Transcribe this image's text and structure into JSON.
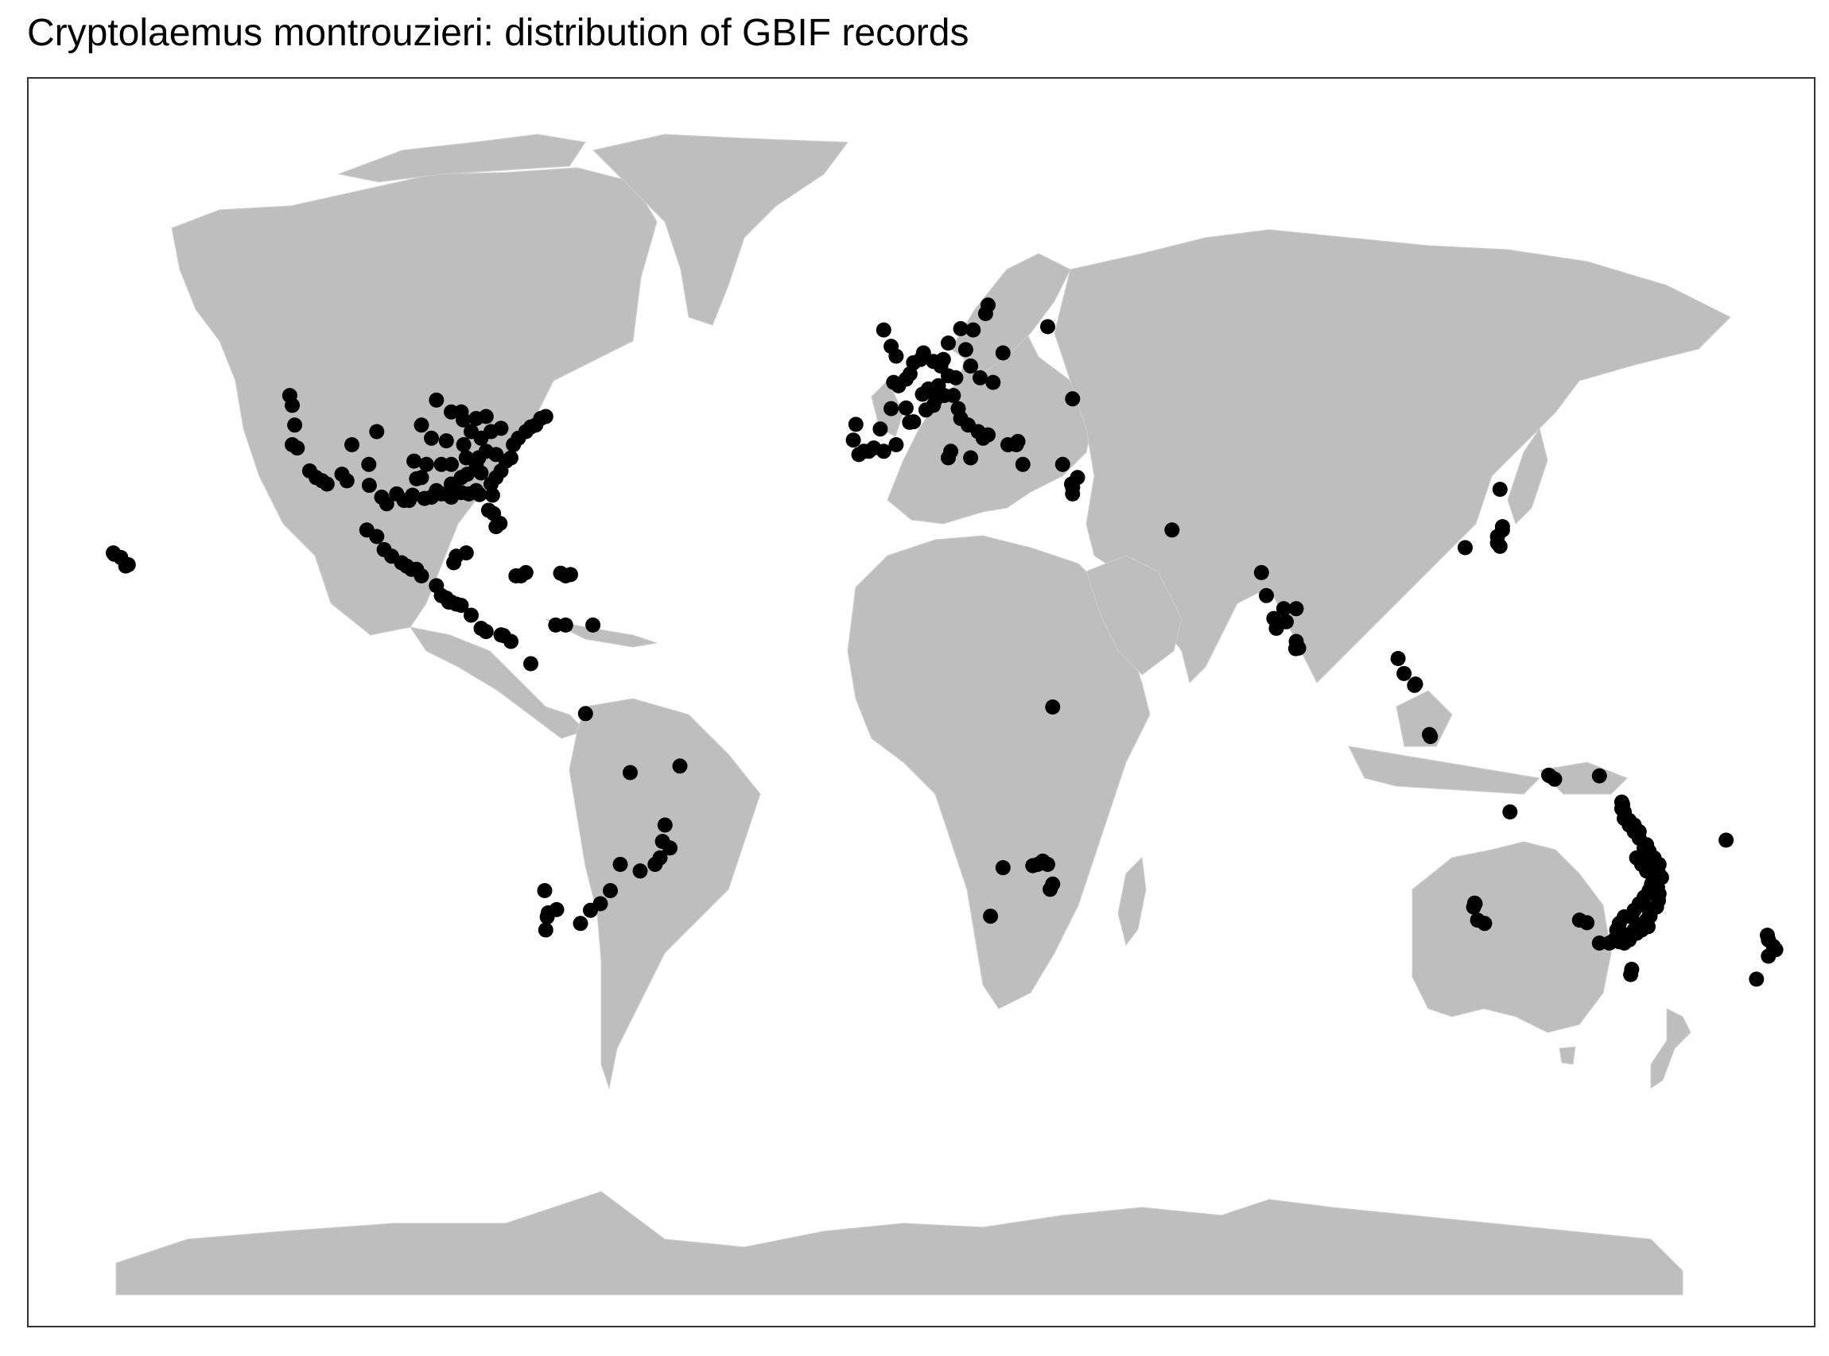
{
  "title": "Cryptolaemus montrouzieri: distribution of GBIF records",
  "colors": {
    "land": "#bebebe",
    "points": "#000000",
    "background": "#ffffff",
    "border": "#333333"
  },
  "map": {
    "projection": "equirectangular-style world map",
    "layers": [
      "land-polygons",
      "gbif-record-points"
    ],
    "point_groups": [
      {
        "region": "North America",
        "points": [
          [
            -122.5,
            45.5
          ],
          [
            -122,
            44
          ],
          [
            -121.5,
            41
          ],
          [
            -122,
            38
          ],
          [
            -121,
            37.5
          ],
          [
            -118.5,
            34
          ],
          [
            -117.2,
            33
          ],
          [
            -116,
            32.5
          ],
          [
            -115,
            32
          ],
          [
            -112,
            33.5
          ],
          [
            -111,
            32.5
          ],
          [
            -106.5,
            31.8
          ],
          [
            -104,
            30
          ],
          [
            -103,
            29
          ],
          [
            -101,
            30.5
          ],
          [
            -99.5,
            29.5
          ],
          [
            -98.5,
            29.5
          ],
          [
            -97.8,
            30.3
          ],
          [
            -97,
            32.8
          ],
          [
            -96,
            33
          ],
          [
            -95.4,
            29.8
          ],
          [
            -94,
            30
          ],
          [
            -93,
            31
          ],
          [
            -92,
            30.5
          ],
          [
            -91,
            30.5
          ],
          [
            -90,
            30
          ],
          [
            -89,
            31
          ],
          [
            -88,
            30.7
          ],
          [
            -86.5,
            30.5
          ],
          [
            -85,
            31
          ],
          [
            -84.3,
            30.4
          ],
          [
            -82.5,
            28
          ],
          [
            -81.5,
            27.5
          ],
          [
            -81,
            25.5
          ],
          [
            -80.2,
            26
          ],
          [
            -81.7,
            30.3
          ],
          [
            -82,
            32
          ],
          [
            -81,
            33
          ],
          [
            -80,
            34
          ],
          [
            -79,
            35.5
          ],
          [
            -78,
            36
          ],
          [
            -77.5,
            38
          ],
          [
            -76.5,
            39
          ],
          [
            -75,
            40
          ],
          [
            -74,
            40.7
          ],
          [
            -73,
            41
          ],
          [
            -72,
            42
          ],
          [
            -71,
            42.3
          ],
          [
            -83,
            42.3
          ],
          [
            -85,
            42
          ],
          [
            -87.6,
            41.8
          ],
          [
            -88,
            43
          ],
          [
            -90,
            43
          ],
          [
            -93,
            44.8
          ],
          [
            -96,
            41
          ],
          [
            -97.5,
            35.5
          ],
          [
            -95,
            35
          ],
          [
            -92,
            35
          ],
          [
            -90,
            35
          ],
          [
            -87,
            36
          ],
          [
            -85,
            35
          ],
          [
            -84,
            33.7
          ],
          [
            -86.8,
            33.5
          ],
          [
            -88,
            33
          ],
          [
            -90,
            32
          ],
          [
            -84,
            39
          ],
          [
            -86,
            40
          ],
          [
            -82,
            40
          ],
          [
            -80,
            40.5
          ],
          [
            -105,
            40
          ],
          [
            -106.6,
            35
          ],
          [
            -110,
            38
          ],
          [
            -91,
            38.6
          ],
          [
            -94,
            39
          ],
          [
            -87.5,
            38
          ],
          [
            -83,
            37
          ],
          [
            -81,
            36.5
          ],
          [
            -84.5,
            36
          ]
        ]
      },
      {
        "region": "Mexico, Central America and Caribbean",
        "points": [
          [
            -107,
            25
          ],
          [
            -105,
            24
          ],
          [
            -103.5,
            22
          ],
          [
            -102,
            21
          ],
          [
            -100,
            20
          ],
          [
            -99,
            19.5
          ],
          [
            -98,
            19
          ],
          [
            -97,
            19
          ],
          [
            -96,
            18
          ],
          [
            -93,
            16.5
          ],
          [
            -92,
            15
          ],
          [
            -91,
            14.6
          ],
          [
            -90.5,
            14
          ],
          [
            -90,
            14
          ],
          [
            -89,
            13.7
          ],
          [
            -88,
            13.5
          ],
          [
            -86,
            12
          ],
          [
            -84,
            10
          ],
          [
            -83,
            9.5
          ],
          [
            -80,
            9
          ],
          [
            -79.5,
            8.9
          ],
          [
            -78,
            8
          ],
          [
            -89.5,
            20
          ],
          [
            -89,
            21
          ],
          [
            -87,
            21.5
          ],
          [
            -77,
            18
          ],
          [
            -76,
            18
          ],
          [
            -75,
            18.5
          ],
          [
            -66,
            18.2
          ],
          [
            -67,
            18
          ],
          [
            -68,
            18.4
          ],
          [
            -69,
            10.5
          ],
          [
            -67,
            10.5
          ],
          [
            -61.5,
            10.5
          ],
          [
            -155.5,
            19.5
          ],
          [
            -156.5,
            20.8
          ],
          [
            -157.8,
            21.3
          ],
          [
            -158,
            21.5
          ],
          [
            -155,
            19.7
          ]
        ]
      },
      {
        "region": "South America",
        "points": [
          [
            -74,
            4.6
          ],
          [
            -63,
            -3
          ],
          [
            -54,
            -12
          ],
          [
            -44,
            -11
          ],
          [
            -47,
            -20
          ],
          [
            -46,
            -23.5
          ],
          [
            -48,
            -25
          ],
          [
            -49,
            -26
          ],
          [
            -47.5,
            -22.5
          ],
          [
            -52,
            -27
          ],
          [
            -56,
            -26
          ],
          [
            -58,
            -30
          ],
          [
            -60,
            -32
          ],
          [
            -62,
            -33
          ],
          [
            -64,
            -35
          ],
          [
            -68.8,
            -32.9
          ],
          [
            -70.5,
            -33.4
          ],
          [
            -70.7,
            -34
          ],
          [
            -71,
            -36
          ],
          [
            -71.2,
            -30
          ]
        ]
      },
      {
        "region": "Europe and Mediterranean",
        "points": [
          [
            18,
            59.3
          ],
          [
            17.5,
            58
          ],
          [
            15,
            55.5
          ],
          [
            12.5,
            55.7
          ],
          [
            13.5,
            52.5
          ],
          [
            10,
            53.5
          ],
          [
            9,
            51
          ],
          [
            8.5,
            50
          ],
          [
            7,
            50.7
          ],
          [
            5,
            52
          ],
          [
            4.4,
            51
          ],
          [
            3,
            50.5
          ],
          [
            2.3,
            48.8
          ],
          [
            1.5,
            48
          ],
          [
            0,
            47
          ],
          [
            -1,
            47.5
          ],
          [
            -1.5,
            43.5
          ],
          [
            1.5,
            43.6
          ],
          [
            2.2,
            41.4
          ],
          [
            3,
            41.5
          ],
          [
            4.8,
            45.7
          ],
          [
            5.5,
            43.3
          ],
          [
            7,
            44
          ],
          [
            7.5,
            45
          ],
          [
            9.2,
            45.5
          ],
          [
            11,
            45.5
          ],
          [
            12,
            43.5
          ],
          [
            12.5,
            42
          ],
          [
            14,
            41
          ],
          [
            16,
            40
          ],
          [
            17,
            39
          ],
          [
            18,
            39.5
          ],
          [
            19,
            47.5
          ],
          [
            21,
            52
          ],
          [
            16.4,
            48.2
          ],
          [
            14.5,
            50
          ],
          [
            11.5,
            48.2
          ],
          [
            10,
            48.5
          ],
          [
            8,
            47
          ],
          [
            6,
            46.5
          ],
          [
            -3.7,
            40.4
          ],
          [
            -5,
            37.5
          ],
          [
            -6,
            37
          ],
          [
            -8.6,
            41.1
          ],
          [
            -9.1,
            38.7
          ],
          [
            -7,
            37
          ],
          [
            -8,
            36.5
          ],
          [
            -3,
            37
          ],
          [
            -0.5,
            38
          ],
          [
            10,
            36
          ],
          [
            10.5,
            37
          ],
          [
            14.5,
            36
          ],
          [
            22,
            38
          ],
          [
            23.7,
            38
          ],
          [
            24,
            38.5
          ],
          [
            25,
            35
          ],
          [
            30,
            56
          ],
          [
            35,
            45
          ],
          [
            33,
            35
          ],
          [
            34.8,
            32
          ],
          [
            35,
            31.5
          ],
          [
            35,
            30.5
          ],
          [
            36,
            33
          ],
          [
            -0.5,
            51.5
          ],
          [
            -1.5,
            53
          ],
          [
            -3,
            55.5
          ],
          [
            55,
            25
          ]
        ]
      },
      {
        "region": "Africa",
        "points": [
          [
            31,
            -2
          ],
          [
            29,
            -25.5
          ],
          [
            28,
            -26
          ],
          [
            30,
            -26
          ],
          [
            31,
            -29
          ],
          [
            30.5,
            -29.8
          ],
          [
            18.5,
            -33.9
          ],
          [
            21,
            -26.5
          ],
          [
            27,
            -26.2
          ]
        ]
      },
      {
        "region": "Asia",
        "points": [
          [
            73,
            18.5
          ],
          [
            74,
            15
          ],
          [
            75.5,
            11.5
          ],
          [
            76,
            10
          ],
          [
            77.5,
            13
          ],
          [
            78,
            11
          ],
          [
            80,
            13
          ],
          [
            80.5,
            7
          ],
          [
            79.9,
            6.9
          ],
          [
            80,
            8
          ],
          [
            100.5,
            5.4
          ],
          [
            101.7,
            3.1
          ],
          [
            103.8,
            1.3
          ],
          [
            104,
            1.5
          ],
          [
            106.8,
            -6.2
          ],
          [
            107,
            -6.5
          ],
          [
            121.5,
            25
          ],
          [
            114,
            22.3
          ],
          [
            121,
            31.2
          ],
          [
            121.5,
            25.5
          ],
          [
            120.5,
            24
          ],
          [
            120.5,
            23
          ],
          [
            121,
            22.5
          ]
        ]
      },
      {
        "region": "Australia and Oceania",
        "points": [
          [
            153,
            -27.5
          ],
          [
            153.5,
            -28
          ],
          [
            152,
            -27
          ],
          [
            151,
            -26
          ],
          [
            150,
            -23.5
          ],
          [
            149,
            -21
          ],
          [
            148,
            -20
          ],
          [
            147,
            -19.3
          ],
          [
            146,
            -18
          ],
          [
            145.7,
            -16.9
          ],
          [
            151.2,
            -33.9
          ],
          [
            151,
            -33
          ],
          [
            150.5,
            -34.5
          ],
          [
            150,
            -35
          ],
          [
            149,
            -35.3
          ],
          [
            148,
            -36
          ],
          [
            147,
            -37.5
          ],
          [
            146,
            -38
          ],
          [
            145,
            -37.8
          ],
          [
            144,
            -37.5
          ],
          [
            143,
            -38
          ],
          [
            141,
            -38
          ],
          [
            138.5,
            -34.9
          ],
          [
            137,
            -34.5
          ],
          [
            116,
            -32
          ],
          [
            115.9,
            -31.9
          ],
          [
            115.7,
            -32.5
          ],
          [
            116.5,
            -34.5
          ],
          [
            117.9,
            -35
          ],
          [
            131,
            -12.5
          ],
          [
            130.8,
            -12.4
          ],
          [
            132,
            -13
          ],
          [
            123,
            -18
          ],
          [
            141,
            -12.5
          ],
          [
            147.5,
            -42
          ],
          [
            147.3,
            -42.8
          ],
          [
            174.8,
            -36.8
          ],
          [
            175,
            -37.5
          ],
          [
            176,
            -38.5
          ],
          [
            176.5,
            -39
          ],
          [
            175,
            -40
          ],
          [
            172.6,
            -43.5
          ],
          [
            166.5,
            -22.3
          ],
          [
            152,
            -25
          ],
          [
            153,
            -26
          ],
          [
            152.7,
            -29.5
          ],
          [
            153,
            -30.5
          ],
          [
            152.9,
            -31.5
          ],
          [
            152.5,
            -32.5
          ],
          [
            151.5,
            -32.8
          ],
          [
            151,
            -34
          ],
          [
            150.8,
            -35.5
          ],
          [
            149.5,
            -36
          ],
          [
            148.5,
            -36.5
          ],
          [
            146.5,
            -37
          ],
          [
            145.5,
            -36.5
          ],
          [
            144.5,
            -36
          ],
          [
            145,
            -35
          ],
          [
            146,
            -34
          ],
          [
            147.5,
            -34
          ],
          [
            148,
            -33
          ],
          [
            149,
            -32
          ],
          [
            150,
            -31
          ],
          [
            151,
            -30
          ],
          [
            151.5,
            -29
          ],
          [
            152,
            -28.5
          ],
          [
            151.5,
            -27.5
          ],
          [
            150.5,
            -27
          ],
          [
            149.5,
            -26
          ],
          [
            148.5,
            -25
          ],
          [
            150,
            -25
          ],
          [
            151,
            -24
          ],
          [
            150.5,
            -23
          ],
          [
            149,
            -22
          ],
          [
            148,
            -21
          ],
          [
            147,
            -20
          ],
          [
            146,
            -19
          ],
          [
            145.5,
            -17.5
          ],
          [
            145.5,
            -16.5
          ]
        ]
      }
    ]
  }
}
